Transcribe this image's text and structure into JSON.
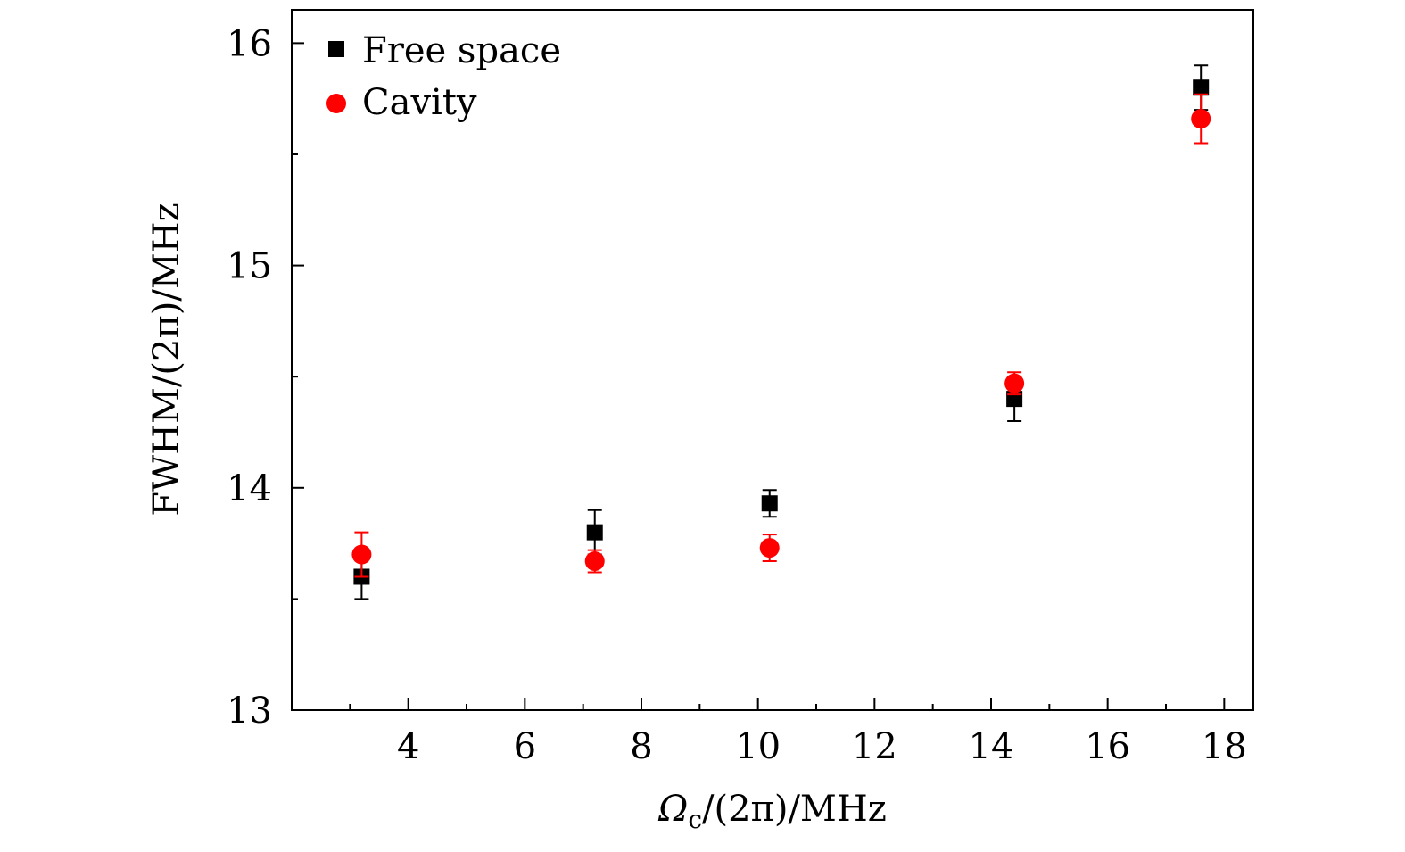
{
  "chart_data": {
    "type": "scatter",
    "xlabel": "Ω_c/(2π)/MHz",
    "xlabel_parts": {
      "symbol": "Ω",
      "subscript": "c",
      "rest": "/(2π)/MHz"
    },
    "ylabel": "FWHM/(2π)/MHz",
    "xlim": [
      2.0,
      18.5
    ],
    "ylim": [
      13,
      16.15
    ],
    "x_ticks": [
      4,
      6,
      8,
      10,
      12,
      14,
      16,
      18
    ],
    "x_tick_labels": [
      "4",
      "6",
      "8",
      "10",
      "12",
      "14",
      "16",
      "18"
    ],
    "x_minor_ticks": [
      3,
      5,
      7,
      9,
      11,
      13,
      15,
      17
    ],
    "y_ticks": [
      13,
      14,
      15,
      16
    ],
    "y_tick_labels": [
      "13",
      "14",
      "15",
      "16"
    ],
    "y_minor_ticks": [
      13.5,
      14.5,
      15.5
    ],
    "grid": false,
    "legend_position": "top-left",
    "series": [
      {
        "name": "Free space",
        "marker": "square",
        "color": "#000000",
        "x": [
          3.2,
          7.2,
          10.2,
          14.4,
          17.6
        ],
        "y": [
          13.6,
          13.8,
          13.93,
          14.4,
          15.8
        ],
        "err": [
          0.1,
          0.1,
          0.06,
          0.1,
          0.1
        ]
      },
      {
        "name": "Cavity",
        "marker": "circle",
        "color": "#ff0000",
        "x": [
          3.2,
          7.2,
          10.2,
          14.4,
          17.6
        ],
        "y": [
          13.7,
          13.67,
          13.73,
          14.47,
          15.66
        ],
        "err": [
          0.1,
          0.05,
          0.06,
          0.05,
          0.11
        ]
      }
    ]
  }
}
